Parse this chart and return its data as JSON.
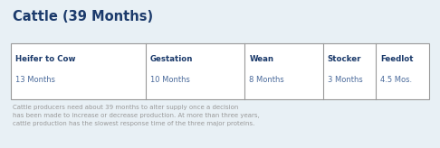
{
  "title": "Cattle (39 Months)",
  "title_color": "#1b3a6b",
  "title_fontsize": 10.5,
  "background_color": "#e8f0f5",
  "table_background": "#ffffff",
  "table_border_color": "#999999",
  "columns": [
    {
      "header": "Heifer to Cow",
      "value": "13 Months",
      "weight": 3.8
    },
    {
      "header": "Gestation",
      "value": "10 Months",
      "weight": 2.8
    },
    {
      "header": "Wean",
      "value": "8 Months",
      "weight": 2.2
    },
    {
      "header": "Stocker",
      "value": "3 Months",
      "weight": 1.5
    },
    {
      "header": "Feedlot",
      "value": "4.5 Mos.",
      "weight": 1.5
    }
  ],
  "header_color": "#1b3a6b",
  "value_color": "#4a6a9b",
  "header_fontsize": 6.2,
  "value_fontsize": 6.0,
  "footnote": "Cattle producers need about 39 months to alter supply once a decision\nhas been made to increase or decrease production. At more than three years,\ncattle production has the slowest response time of the three major proteins.",
  "footnote_color": "#999999",
  "footnote_fontsize": 5.0,
  "fig_width": 4.86,
  "fig_height": 1.64,
  "dpi": 100
}
